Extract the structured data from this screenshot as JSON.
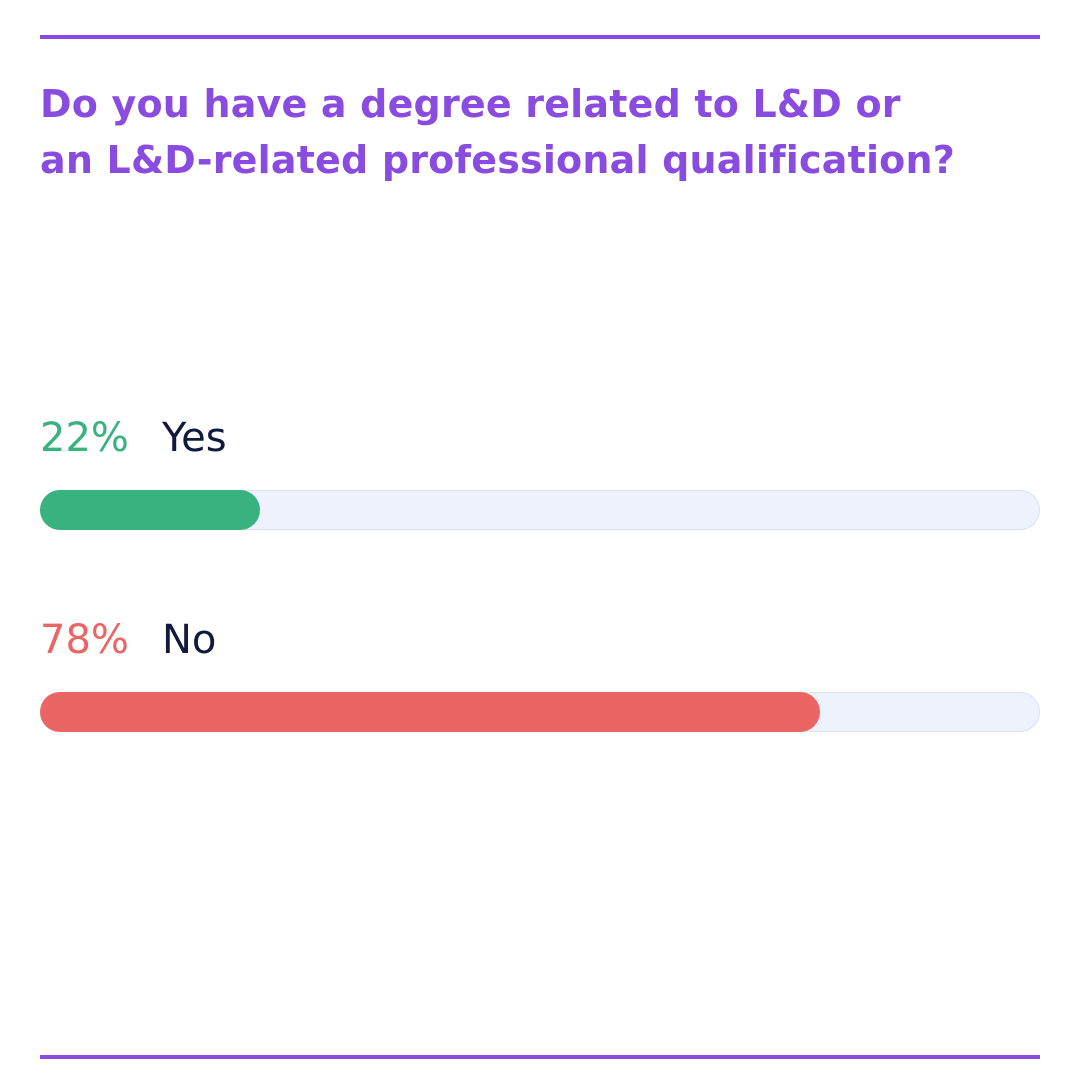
{
  "title_lines": [
    "Do you have a degree related to L&D or",
    "an L&D-related professional qualification?"
  ],
  "colors": {
    "accent": "#8a4ce0",
    "yes": "#38b27f",
    "no": "#ec6565",
    "track": "#edf2fc",
    "label_text": "#0f1a3d"
  },
  "chart_data": {
    "type": "bar",
    "orientation": "horizontal",
    "title": "Do you have a degree related to L&D or an L&D-related professional qualification?",
    "categories": [
      "Yes",
      "No"
    ],
    "values": [
      22,
      78
    ],
    "value_labels": [
      "22%",
      "78%"
    ],
    "unit": "%",
    "xlim": [
      0,
      100
    ],
    "grid": false,
    "legend": "none"
  }
}
